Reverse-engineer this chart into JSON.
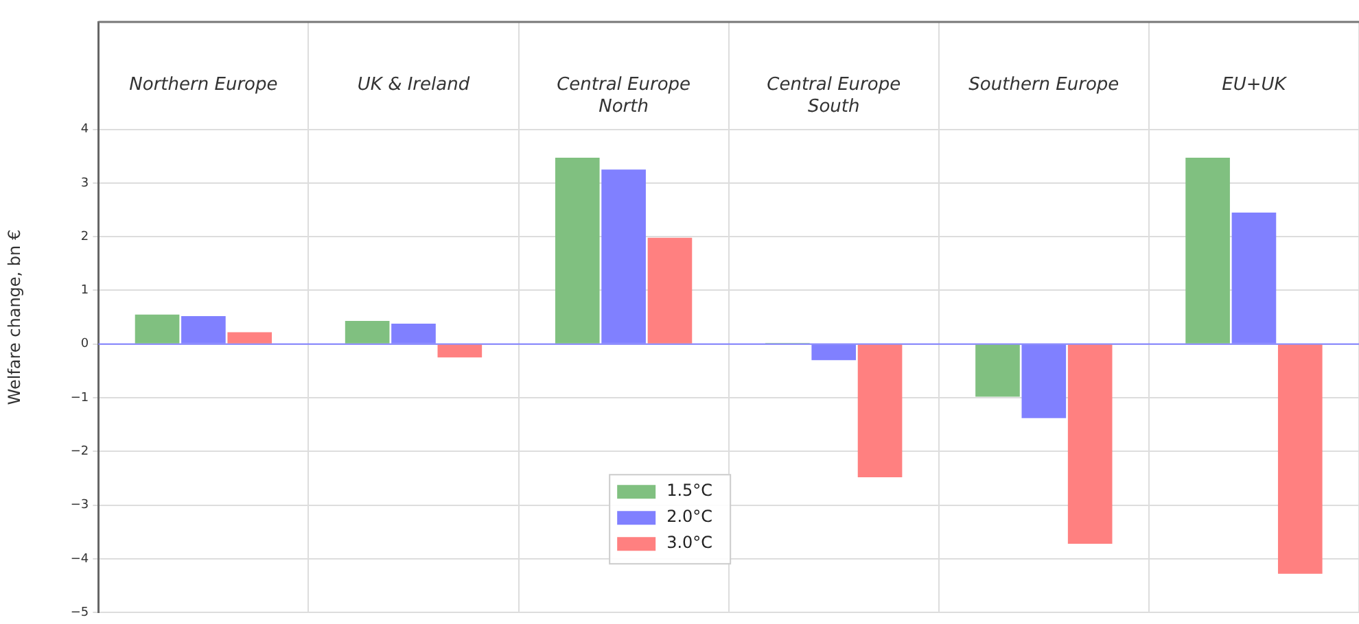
{
  "chart_data": {
    "type": "bar",
    "ylabel": "Welfare change, bn €",
    "categories": [
      "Northern Europe",
      "UK & Ireland",
      "Central Europe North",
      "Central Europe South",
      "Southern Europe",
      "EU+UK"
    ],
    "series": [
      {
        "name": "1.5°C",
        "color": "#80c080",
        "values": [
          0.55,
          0.43,
          3.47,
          0.02,
          -0.98,
          3.47
        ]
      },
      {
        "name": "2.0°C",
        "color": "#8080ff",
        "values": [
          0.52,
          0.38,
          3.25,
          -0.3,
          -1.38,
          2.45
        ]
      },
      {
        "name": "3.0°C",
        "color": "#ff8080",
        "values": [
          0.22,
          -0.25,
          1.98,
          -2.48,
          -3.72,
          -4.28
        ]
      }
    ],
    "ylim": [
      -5,
      6
    ],
    "yticks": [
      -5,
      -4,
      -3,
      -2,
      -1,
      0,
      1,
      2,
      3,
      4
    ],
    "ref_lines": [
      {
        "axis": "y",
        "value": 0,
        "color": "#8080ff"
      }
    ],
    "grid": true,
    "legend": "bottom"
  }
}
